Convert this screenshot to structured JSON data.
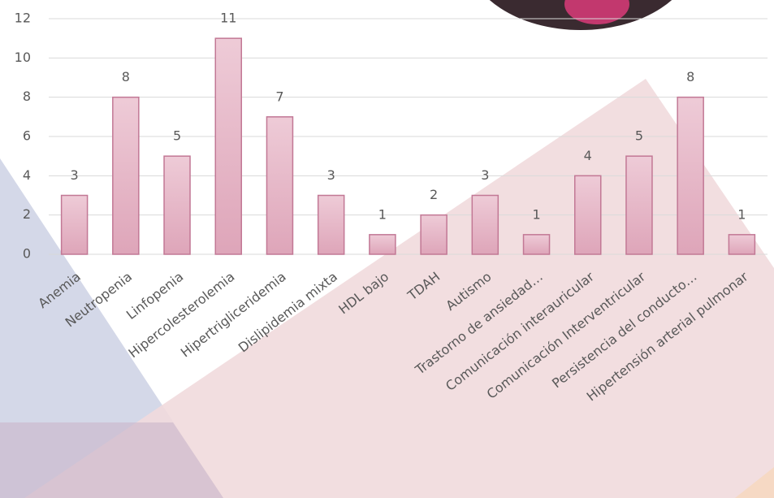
{
  "chart_data": {
    "type": "bar",
    "categories": [
      "Anemia",
      "Neutropenia",
      "Linfopenia",
      "Hipercolesterolemia",
      "Hipertrigliceridemia",
      "Dislipidemia mixta",
      "HDL bajo",
      "TDAH",
      "Autismo",
      "Trastorno de ansiedad…",
      "Comunicación interauricular",
      "Comunicación Interventricular",
      "Persistencia del conducto…",
      "Hipertensión arterial pulmonar"
    ],
    "values": [
      3,
      8,
      5,
      11,
      7,
      3,
      1,
      2,
      3,
      1,
      4,
      5,
      8,
      1
    ],
    "color": "#e6b3c5",
    "ylim": [
      0,
      12
    ],
    "yticks": [
      0,
      2,
      4,
      6,
      8,
      10,
      12
    ],
    "grid": true
  }
}
